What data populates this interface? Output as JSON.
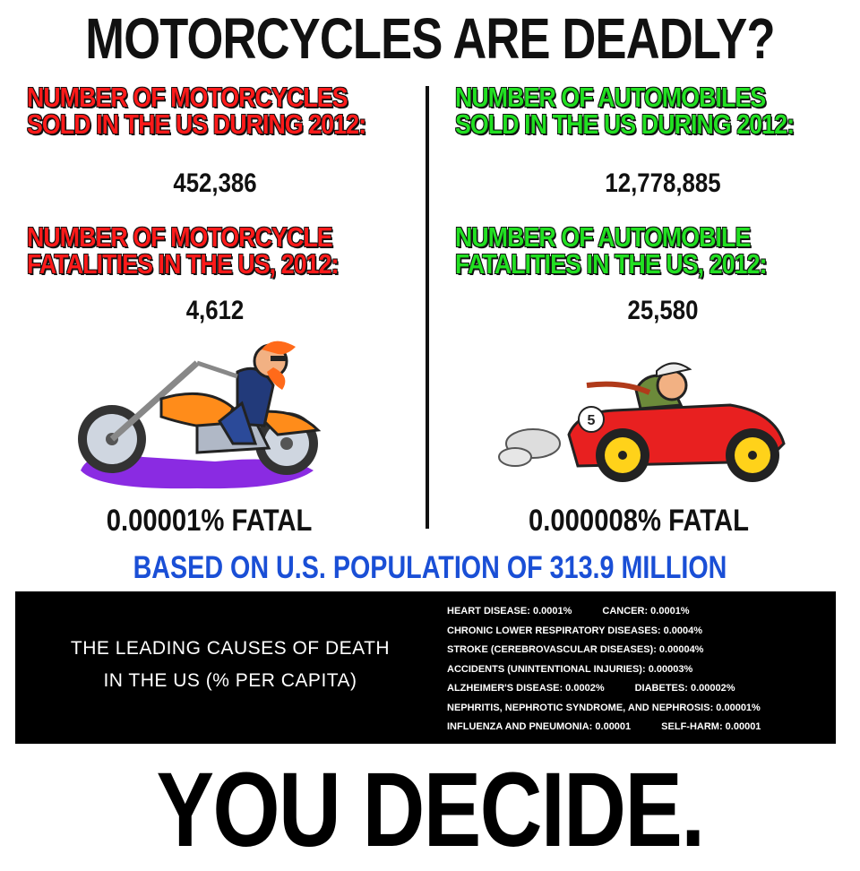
{
  "title": "MOTORCYCLES ARE DEADLY?",
  "left": {
    "sold_heading_1": "NUMBER OF MOTORCYCLES",
    "sold_heading_2": "SOLD IN THE US DURING 2012:",
    "sold_value": "452,386",
    "fatal_heading_1": "NUMBER OF MOTORCYCLE",
    "fatal_heading_2": "FATALITIES  IN THE US, 2012:",
    "fatal_value": "4,612",
    "rate": "0.00001% FATAL"
  },
  "right": {
    "sold_heading_1": "NUMBER OF AUTOMOBILES",
    "sold_heading_2": "SOLD IN THE US DURING 2012:",
    "sold_value": "12,778,885",
    "fatal_heading_1": "NUMBER OF AUTOMOBILE",
    "fatal_heading_2": "FATALITIES  IN THE US, 2012:",
    "fatal_value": "25,580",
    "rate": "0.000008% FATAL",
    "car_number": "5"
  },
  "population_note": "BASED ON U.S. POPULATION OF 313.9 MILLION",
  "causes": {
    "title_1": "THE LEADING CAUSES OF DEATH",
    "title_2": "IN THE US (% PER CAPITA)",
    "items": [
      [
        "HEART DISEASE: 0.0001%",
        "CANCER: 0.0001%"
      ],
      [
        "CHRONIC LOWER RESPIRATORY DISEASES: 0.0004%"
      ],
      [
        "STROKE (CEREBROVASCULAR DISEASES): 0.00004%"
      ],
      [
        "ACCIDENTS (UNINTENTIONAL INJURIES): 0.00003%"
      ],
      [
        "ALZHEIMER'S DISEASE: 0.0002%",
        "DIABETES: 0.00002%"
      ],
      [
        "NEPHRITIS, NEPHROTIC SYNDROME, AND NEPHROSIS: 0.00001%"
      ],
      [
        "INFLUENZA AND PNEUMONIA: 0.00001",
        "SELF-HARM: 0.00001"
      ]
    ]
  },
  "closing": "YOU DECIDE.",
  "colors": {
    "motorcycle_heading": "#ff1a1a",
    "automobile_heading": "#22e022",
    "population_note": "#1a4fd6"
  },
  "icons": [
    "motorcycle-rider-cartoon",
    "race-car-driver-cartoon"
  ]
}
